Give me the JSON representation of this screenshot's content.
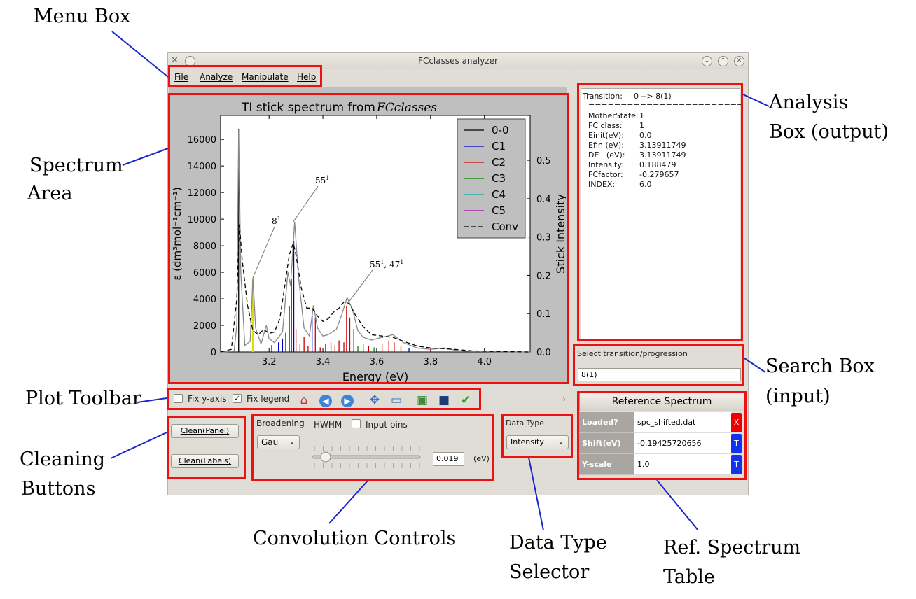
{
  "annotations": {
    "menu_box": "Menu Box",
    "spectrum_area": [
      "Spectrum",
      "Area"
    ],
    "plot_toolbar": "Plot Toolbar",
    "cleaning_buttons": [
      "Cleaning",
      "Buttons"
    ],
    "convolution_controls": "Convolution Controls",
    "data_type_selector": [
      "Data Type",
      "Selector"
    ],
    "ref_spectrum_table": [
      "Ref. Spectrum",
      "Table"
    ],
    "analysis_box": [
      "Analysis",
      "Box (output)"
    ],
    "search_box": [
      "Search Box",
      "(input)"
    ]
  },
  "window": {
    "title": "FCclasses analyzer",
    "menu": [
      "File",
      "Analyze",
      "Manipulate",
      "Help"
    ]
  },
  "chart_data": {
    "type": "line",
    "title": "TI stick spectrum from ",
    "title_italic": "FCclasses",
    "xlabel": "Energy (eV)",
    "ylabel": "ε (dm³mol⁻¹cm⁻¹)",
    "y2label": "Stick Intensity",
    "xlim": [
      3.02,
      4.17
    ],
    "ylim": [
      0,
      17800
    ],
    "y2lim": [
      0,
      0.617
    ],
    "x_ticks": [
      "3.2",
      "3.4",
      "3.6",
      "3.8",
      "4.0"
    ],
    "y_ticks": [
      "0",
      "2000",
      "4000",
      "6000",
      "8000",
      "10000",
      "12000",
      "14000",
      "16000"
    ],
    "y2_ticks": [
      "0.0",
      "0.1",
      "0.2",
      "0.3",
      "0.4",
      "0.5"
    ],
    "legend": [
      "0-0",
      "C1",
      "C2",
      "C3",
      "C4",
      "C5",
      "Conv"
    ],
    "legend_colors": [
      "#000000",
      "#0000cc",
      "#cc0000",
      "#008800",
      "#00aaaa",
      "#aa00aa",
      "#000000"
    ],
    "annotations": [
      {
        "label": "8",
        "sup": "1",
        "x": 3.14,
        "y": 5600
      },
      {
        "label": "55",
        "sup": "1",
        "x": 3.29,
        "y": 9800
      },
      {
        "label": "55",
        "sup": "1",
        "label2": ", 47",
        "sup2": "1",
        "x": 3.49,
        "y": 3600
      }
    ],
    "sticks": [
      {
        "x": 3.087,
        "h": 0.58,
        "c": "#000000"
      },
      {
        "x": 3.14,
        "h": 0.188,
        "c": "#dddd00"
      },
      {
        "x": 3.21,
        "h": 0.018,
        "c": "#0000cc"
      },
      {
        "x": 3.235,
        "h": 0.025,
        "c": "#0000cc"
      },
      {
        "x": 3.25,
        "h": 0.035,
        "c": "#0000cc"
      },
      {
        "x": 3.262,
        "h": 0.05,
        "c": "#0000cc"
      },
      {
        "x": 3.275,
        "h": 0.12,
        "c": "#0000cc"
      },
      {
        "x": 3.283,
        "h": 0.19,
        "c": "#0000cc"
      },
      {
        "x": 3.292,
        "h": 0.29,
        "c": "#0000cc"
      },
      {
        "x": 3.3,
        "h": 0.06,
        "c": "#cc0000"
      },
      {
        "x": 3.315,
        "h": 0.022,
        "c": "#cc0000"
      },
      {
        "x": 3.33,
        "h": 0.04,
        "c": "#cc0000"
      },
      {
        "x": 3.345,
        "h": 0.015,
        "c": "#cc0000"
      },
      {
        "x": 3.36,
        "h": 0.11,
        "c": "#0000cc"
      },
      {
        "x": 3.372,
        "h": 0.09,
        "c": "#cc0000"
      },
      {
        "x": 3.39,
        "h": 0.012,
        "c": "#cc0000"
      },
      {
        "x": 3.41,
        "h": 0.02,
        "c": "#cc0000"
      },
      {
        "x": 3.43,
        "h": 0.025,
        "c": "#cc0000"
      },
      {
        "x": 3.445,
        "h": 0.018,
        "c": "#cc0000"
      },
      {
        "x": 3.46,
        "h": 0.03,
        "c": "#cc0000"
      },
      {
        "x": 3.478,
        "h": 0.025,
        "c": "#cc0000"
      },
      {
        "x": 3.488,
        "h": 0.12,
        "c": "#cc0000"
      },
      {
        "x": 3.5,
        "h": 0.09,
        "c": "#cc0000"
      },
      {
        "x": 3.515,
        "h": 0.06,
        "c": "#0000cc"
      },
      {
        "x": 3.53,
        "h": 0.015,
        "c": "#008800"
      },
      {
        "x": 3.55,
        "h": 0.022,
        "c": "#008800"
      },
      {
        "x": 3.57,
        "h": 0.015,
        "c": "#cc0000"
      },
      {
        "x": 3.59,
        "h": 0.012,
        "c": "#008800"
      },
      {
        "x": 3.62,
        "h": 0.02,
        "c": "#cc0000"
      },
      {
        "x": 3.645,
        "h": 0.03,
        "c": "#cc0000"
      },
      {
        "x": 3.665,
        "h": 0.025,
        "c": "#cc0000"
      },
      {
        "x": 3.69,
        "h": 0.015,
        "c": "#cc0000"
      },
      {
        "x": 3.72,
        "h": 0.01,
        "c": "#0000cc"
      },
      {
        "x": 3.8,
        "h": 0.008,
        "c": "#cc0000"
      }
    ],
    "gray_curve": [
      [
        3.02,
        0
      ],
      [
        3.07,
        50
      ],
      [
        3.08,
        2000
      ],
      [
        3.087,
        16700
      ],
      [
        3.095,
        6000
      ],
      [
        3.11,
        500
      ],
      [
        3.13,
        800
      ],
      [
        3.14,
        5600
      ],
      [
        3.15,
        1800
      ],
      [
        3.17,
        600
      ],
      [
        3.19,
        2000
      ],
      [
        3.2,
        1000
      ],
      [
        3.22,
        700
      ],
      [
        3.25,
        1500
      ],
      [
        3.27,
        6000
      ],
      [
        3.28,
        5000
      ],
      [
        3.295,
        9800
      ],
      [
        3.31,
        5500
      ],
      [
        3.33,
        1800
      ],
      [
        3.35,
        1200
      ],
      [
        3.365,
        3500
      ],
      [
        3.38,
        1800
      ],
      [
        3.4,
        1200
      ],
      [
        3.42,
        1300
      ],
      [
        3.45,
        1700
      ],
      [
        3.47,
        2800
      ],
      [
        3.49,
        4100
      ],
      [
        3.51,
        3200
      ],
      [
        3.53,
        1600
      ],
      [
        3.55,
        1100
      ],
      [
        3.58,
        900
      ],
      [
        3.62,
        1100
      ],
      [
        3.66,
        1300
      ],
      [
        3.7,
        700
      ],
      [
        3.75,
        300
      ],
      [
        3.8,
        200
      ],
      [
        3.85,
        300
      ],
      [
        3.9,
        100
      ],
      [
        3.95,
        40
      ],
      [
        4.05,
        20
      ],
      [
        4.17,
        0
      ]
    ],
    "conv_curve": [
      [
        3.02,
        0
      ],
      [
        3.06,
        200
      ],
      [
        3.08,
        4000
      ],
      [
        3.09,
        9600
      ],
      [
        3.1,
        7000
      ],
      [
        3.12,
        3500
      ],
      [
        3.14,
        1600
      ],
      [
        3.16,
        1300
      ],
      [
        3.18,
        1700
      ],
      [
        3.2,
        1400
      ],
      [
        3.22,
        1500
      ],
      [
        3.24,
        2500
      ],
      [
        3.26,
        5200
      ],
      [
        3.275,
        7300
      ],
      [
        3.29,
        8200
      ],
      [
        3.3,
        7300
      ],
      [
        3.32,
        4800
      ],
      [
        3.34,
        3300
      ],
      [
        3.36,
        3300
      ],
      [
        3.38,
        2700
      ],
      [
        3.4,
        2300
      ],
      [
        3.42,
        2500
      ],
      [
        3.44,
        3000
      ],
      [
        3.46,
        3300
      ],
      [
        3.48,
        3800
      ],
      [
        3.5,
        3600
      ],
      [
        3.52,
        2800
      ],
      [
        3.55,
        1900
      ],
      [
        3.58,
        1300
      ],
      [
        3.62,
        1200
      ],
      [
        3.66,
        1100
      ],
      [
        3.7,
        800
      ],
      [
        3.75,
        450
      ],
      [
        3.8,
        300
      ],
      [
        3.85,
        250
      ],
      [
        3.9,
        180
      ],
      [
        3.95,
        90
      ],
      [
        4.05,
        30
      ],
      [
        4.17,
        0
      ]
    ]
  },
  "toolbar": {
    "fix_y_axis": "Fix y-axis",
    "fix_legend": "Fix legend",
    "arrow_right": "›"
  },
  "analysis": {
    "transition_key": "Transition:",
    "transition_val": "0 --> 8(1)",
    "separator": "========================",
    "rows": [
      {
        "k": "MotherState:",
        "v": "1"
      },
      {
        "k": "FC class:",
        "v": "1"
      },
      {
        "k": "Einit(eV):",
        "v": "0.0"
      },
      {
        "k": "Efin (eV):",
        "v": "3.13911749"
      },
      {
        "k": "DE   (eV):",
        "v": "3.13911749"
      },
      {
        "k": "Intensity:",
        "v": "0.188479"
      },
      {
        "k": "FCfactor:",
        "v": "-0.279657"
      },
      {
        "k": "INDEX:",
        "v": "6.0"
      }
    ]
  },
  "search": {
    "label": "Select transition/progression",
    "value": "8(1)"
  },
  "cleaning": {
    "panel": "Clean(Panel)",
    "labels": "Clean(Labels)"
  },
  "convolution": {
    "broadening_label": "Broadening",
    "broadening_value": "Gau",
    "hwhm_label": "HWHM",
    "input_bins_label": "Input bins",
    "hwhm_value": "0.019",
    "unit": "(eV)"
  },
  "data_type": {
    "label": "Data Type",
    "value": "Intensity"
  },
  "ref_spectrum": {
    "header": "Reference Spectrum",
    "rows": [
      {
        "head": "Loaded?",
        "value": "spc_shifted.dat",
        "btn": "X",
        "btn_color": "#ee0000"
      },
      {
        "head": "Shift(eV)",
        "value": "-0.19425720656",
        "btn": "T",
        "btn_color": "#1133ee"
      },
      {
        "head": "Y-scale",
        "value": "1.0",
        "btn": "T",
        "btn_color": "#1133ee"
      }
    ]
  }
}
